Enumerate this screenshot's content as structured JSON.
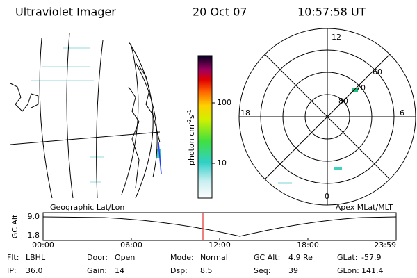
{
  "header": {
    "instrument": "Ultraviolet Imager",
    "date": "20 Oct 07",
    "time": "10:57:58 UT"
  },
  "colorbar": {
    "ticks": [
      "100",
      "10"
    ],
    "label": {
      "base": "photon cm",
      "exp1": "-2",
      "unit2": "s",
      "exp2": "-1"
    }
  },
  "polar": {
    "mlt_labels": [
      "12",
      "18",
      "6",
      "0"
    ],
    "lat_labels": [
      "60",
      "70",
      "80"
    ]
  },
  "timeline": {
    "left_title": "Geographic Lat/Lon",
    "right_title": "Apex MLat/MLT",
    "axis_label": "GC Alt",
    "yticks": [
      "9.0",
      "1.8"
    ],
    "xticks": [
      "00:00",
      "06:00",
      "12:00",
      "18:00",
      "23:59"
    ]
  },
  "footer": {
    "rows": [
      [
        {
          "label": "Flt:",
          "value": "LBHL"
        },
        {
          "label": "Door:",
          "value": "Open"
        },
        {
          "label": "Mode:",
          "value": "Normal"
        },
        {
          "label": "GC Alt:",
          "value": "4.9 Re"
        },
        {
          "label": "GLat:",
          "value": "-57.9"
        }
      ],
      [
        {
          "label": "IP:",
          "value": "36.0"
        },
        {
          "label": "Gain:",
          "value": "14"
        },
        {
          "label": "Dsp:",
          "value": "8.5"
        },
        {
          "label": "Seq:",
          "value": "39"
        },
        {
          "label": "GLon:",
          "value": "141.4"
        }
      ]
    ]
  }
}
